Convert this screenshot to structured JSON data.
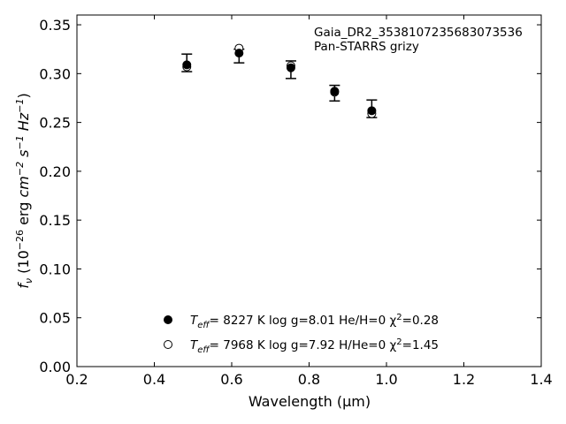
{
  "chart_data": {
    "type": "scatter",
    "xlabel": "Wavelength (μm)",
    "ylabel": "fν (10⁻²⁶ erg cm⁻² s⁻¹ Hz⁻¹)",
    "xlim": [
      0.2,
      1.4
    ],
    "ylim": [
      0.0,
      0.36
    ],
    "xticks": [
      "0.2",
      "0.4",
      "0.6",
      "0.8",
      "1.0",
      "1.2",
      "1.4"
    ],
    "yticks": [
      "0.00",
      "0.05",
      "0.10",
      "0.15",
      "0.20",
      "0.25",
      "0.30",
      "0.35"
    ],
    "grid": false,
    "annotations": [
      "Gaia_DR2_3538107235683073536",
      "Pan-STARRS grizy"
    ],
    "observed": {
      "x": [
        0.484,
        0.619,
        0.753,
        0.866,
        0.962
      ],
      "y": [
        0.311,
        0.318,
        0.304,
        0.28,
        0.264
      ],
      "yerr": [
        0.009,
        0.007,
        0.009,
        0.008,
        0.009
      ]
    },
    "series": [
      {
        "legend_parts": [
          "T",
          "eff",
          "=  8227 K  log g=8.01  He/H=0  χ",
          "2",
          "=0.28"
        ],
        "marker": "filled",
        "x": [
          0.484,
          0.619,
          0.753,
          0.866,
          0.962
        ],
        "y": [
          0.309,
          0.321,
          0.306,
          0.282,
          0.262
        ]
      },
      {
        "legend_parts": [
          "T",
          "eff",
          "=  7968 K  log g=7.92  H/He=0  χ",
          "2",
          "=1.45"
        ],
        "marker": "open",
        "x": [
          0.484,
          0.619,
          0.753,
          0.866,
          0.962
        ],
        "y": [
          0.307,
          0.326,
          0.308,
          0.281,
          0.259
        ]
      }
    ],
    "legend_placement": "lower-center"
  }
}
